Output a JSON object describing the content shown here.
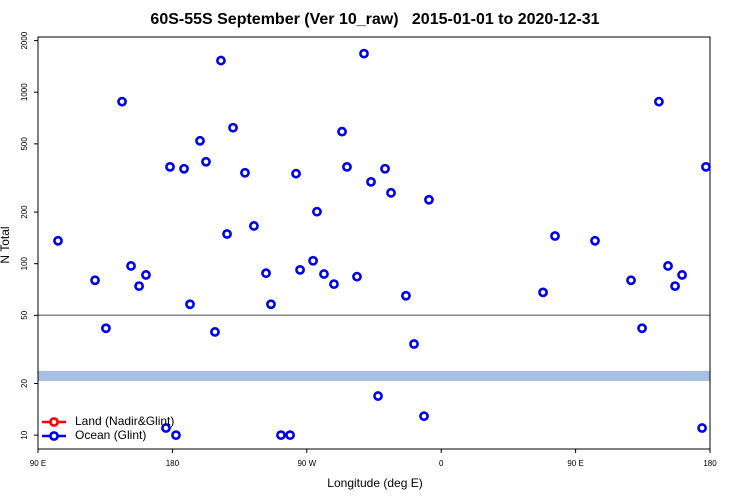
{
  "chart_data": {
    "type": "scatter",
    "title": "60S-55S September (Ver 10_raw)   2015-01-01 to 2020-12-31",
    "x_label": "Longitude (deg E)",
    "y_label": "N Total",
    "xlim": [
      90,
      540
    ],
    "xticks": [
      {
        "value": 90,
        "label": "90 E"
      },
      180,
      {
        "value": 270,
        "label": "90 W"
      },
      {
        "value": 360,
        "label": "0"
      },
      {
        "value": 450,
        "label": "90 E"
      },
      {
        "value": 540,
        "label": "180"
      }
    ],
    "ylim": [
      8.3,
      2100
    ],
    "log_y": true,
    "yticks": [
      10,
      20,
      50,
      100,
      200,
      500,
      1000,
      2000
    ],
    "hline": 50,
    "hline_color": "#888888",
    "band": [
      20.7,
      23.7
    ],
    "band_color": "#a7bfe0",
    "legend": "bottom-left",
    "series": [
      {
        "name": "Land (Nadir&Glint)",
        "color": "#ff0000",
        "x": [],
        "values": []
      },
      {
        "name": "Ocean (Glint)",
        "color": "#0000ee",
        "x": [
          103.4,
          128.2,
          135.5,
          146.3,
          152.3,
          157.7,
          162.3,
          175.7,
          178.4,
          182.4,
          187.8,
          191.8,
          198.5,
          202.5,
          208.5,
          212.5,
          216.6,
          220.6,
          228.6,
          234.6,
          242.7,
          246.0,
          252.7,
          258.8,
          262.8,
          265.5,
          274.2,
          276.8,
          281.5,
          288.2,
          293.6,
          296.9,
          303.6,
          308.3,
          313.0,
          317.7,
          322.4,
          326.4,
          336.4,
          341.8,
          348.5,
          351.8,
          428.2,
          436.2,
          463.0,
          487.1,
          494.5,
          505.8,
          511.9,
          516.6,
          521.3,
          534.7,
          537.3
        ],
        "values": [
          136,
          80,
          42,
          881,
          97,
          74,
          86,
          11,
          367,
          10,
          358,
          58,
          521,
          393,
          40,
          1530,
          149,
          621,
          339,
          166,
          88,
          58,
          10,
          10,
          335,
          92,
          104,
          201,
          87,
          76,
          589,
          367,
          84,
          1680,
          300,
          16.9,
          358,
          259,
          65,
          34,
          12.9,
          236,
          68,
          145,
          136,
          80,
          42,
          881,
          97,
          74,
          86,
          11,
          367
        ]
      }
    ]
  }
}
